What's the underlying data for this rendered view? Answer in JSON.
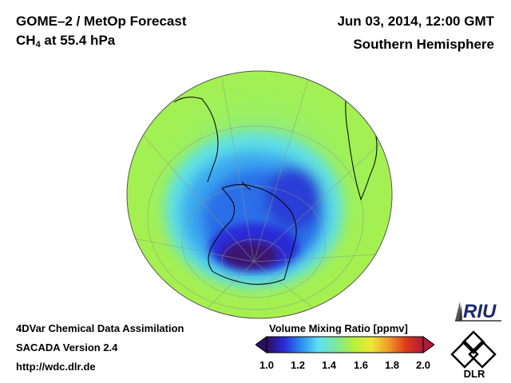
{
  "header": {
    "title_line1": "GOME–2 / MetOp Forecast",
    "species": "CH",
    "species_sub": "4",
    "level": " at 55.4 hPa",
    "datetime": "Jun 03, 2014, 12:00 GMT",
    "region": "Southern Hemisphere"
  },
  "footer": {
    "line1": "4DVar Chemical Data Assimilation",
    "line2": "SACADA Version 2.4",
    "line3": "http://wdc.dlr.de"
  },
  "colorbar": {
    "title": "Volume Mixing Ratio [ppmv]",
    "ticks": [
      "1.0",
      "1.2",
      "1.4",
      "1.6",
      "1.8",
      "2.0"
    ],
    "min": 1.0,
    "max": 2.0,
    "colors": [
      "#2a0f5e",
      "#2a2ad8",
      "#2a8ff0",
      "#5fe0f0",
      "#7ee89a",
      "#b6f03a",
      "#f0e838",
      "#f09a28",
      "#e03a1a",
      "#b01a3a"
    ]
  },
  "logos": {
    "riu": "RIU",
    "dlr": "DLR"
  }
}
